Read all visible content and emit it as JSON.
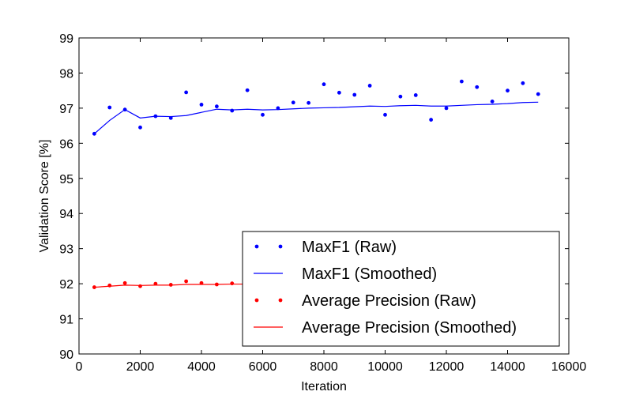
{
  "chart_data": {
    "type": "scatter",
    "xlabel": "Iteration",
    "ylabel": "Validation Score [%]",
    "xlim": [
      0,
      16000
    ],
    "ylim": [
      90,
      99
    ],
    "xticks": [
      0,
      2000,
      4000,
      6000,
      8000,
      10000,
      12000,
      14000,
      16000
    ],
    "yticks": [
      90,
      91,
      92,
      93,
      94,
      95,
      96,
      97,
      98,
      99
    ],
    "grid": false,
    "legend_position": "bottom-right",
    "series": [
      {
        "name": "MaxF1 (Raw)",
        "kind": "points",
        "color": "#0000ff",
        "x": [
          500,
          1000,
          1500,
          2000,
          2500,
          3000,
          3500,
          4000,
          4500,
          5000,
          5500,
          6000,
          6500,
          7000,
          7500,
          8000,
          8500,
          9000,
          9500,
          10000,
          10500,
          11000,
          11500,
          12000,
          12500,
          13000,
          13500,
          14000,
          14500,
          15000
        ],
        "y": [
          96.27,
          97.02,
          96.96,
          96.45,
          96.77,
          96.72,
          97.45,
          97.1,
          97.05,
          96.93,
          97.51,
          96.81,
          97.0,
          97.16,
          97.15,
          97.68,
          97.44,
          97.38,
          97.64,
          96.81,
          97.33,
          97.37,
          96.67,
          97.0,
          97.76,
          97.6,
          97.19,
          97.5,
          97.71,
          97.4
        ]
      },
      {
        "name": "MaxF1 (Smoothed)",
        "kind": "line",
        "color": "#0000ff",
        "x": [
          500,
          1000,
          1500,
          2000,
          2500,
          3000,
          3500,
          4000,
          4500,
          5000,
          5500,
          6000,
          6500,
          7000,
          7500,
          8000,
          8500,
          9000,
          9500,
          10000,
          10500,
          11000,
          11500,
          12000,
          12500,
          13000,
          13500,
          14000,
          14500,
          15000
        ],
        "y": [
          96.27,
          96.65,
          96.96,
          96.72,
          96.77,
          96.76,
          96.79,
          96.88,
          96.97,
          96.95,
          96.97,
          96.95,
          96.96,
          96.98,
          97.0,
          97.01,
          97.02,
          97.04,
          97.06,
          97.05,
          97.07,
          97.08,
          97.06,
          97.06,
          97.08,
          97.1,
          97.11,
          97.13,
          97.16,
          97.17
        ]
      },
      {
        "name": "Average Precision (Raw)",
        "kind": "points",
        "color": "#ff0000",
        "x": [
          500,
          1000,
          1500,
          2000,
          2500,
          3000,
          3500,
          4000,
          4500,
          5000,
          5500,
          6000,
          6500,
          7000
        ],
        "y": [
          91.9,
          91.95,
          92.02,
          91.93,
          92.0,
          91.97,
          92.07,
          92.02,
          91.98,
          92.01,
          92.0,
          92.02,
          92.01,
          92.02
        ]
      },
      {
        "name": "Average Precision (Smoothed)",
        "kind": "line",
        "color": "#ff0000",
        "x": [
          500,
          1000,
          1500,
          2000,
          2500,
          3000,
          3500,
          4000,
          4500,
          5000,
          5500,
          6000,
          6500,
          7000
        ],
        "y": [
          91.9,
          91.93,
          91.96,
          91.95,
          91.96,
          91.96,
          91.98,
          91.98,
          91.98,
          91.99,
          91.99,
          92.0,
          92.0,
          92.01
        ]
      }
    ]
  }
}
